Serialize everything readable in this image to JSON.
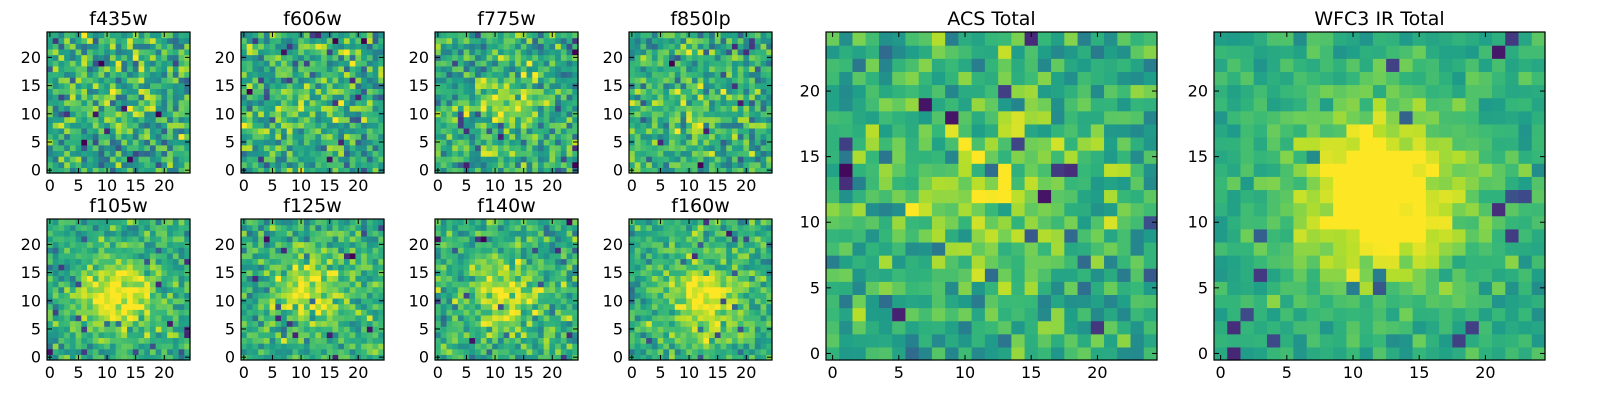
{
  "figure": {
    "colormap": "viridis",
    "colormap_stops": [
      "#440154",
      "#482878",
      "#3e4989",
      "#31688e",
      "#26828e",
      "#1f9e89",
      "#35b779",
      "#6ece58",
      "#b5de2b",
      "#fde725"
    ]
  },
  "chart_data": [
    {
      "type": "heatmap",
      "title": "f435w",
      "grid": [
        25,
        25
      ],
      "xlim": [
        -0.5,
        24.5
      ],
      "ylim": [
        -0.5,
        24.5
      ],
      "xticks": [
        0,
        5,
        10,
        15,
        20
      ],
      "yticks": [
        0,
        5,
        10,
        15,
        20
      ],
      "colormap": "viridis",
      "center": [
        12,
        12
      ],
      "blob_strength": 0.05,
      "noise": 0.42,
      "seed": 11
    },
    {
      "type": "heatmap",
      "title": "f606w",
      "grid": [
        25,
        25
      ],
      "xlim": [
        -0.5,
        24.5
      ],
      "ylim": [
        -0.5,
        24.5
      ],
      "xticks": [
        0,
        5,
        10,
        15,
        20
      ],
      "yticks": [
        0,
        5,
        10,
        15,
        20
      ],
      "colormap": "viridis",
      "center": [
        12,
        12
      ],
      "blob_strength": 0.12,
      "noise": 0.4,
      "seed": 23
    },
    {
      "type": "heatmap",
      "title": "f775w",
      "grid": [
        25,
        25
      ],
      "xlim": [
        -0.5,
        24.5
      ],
      "ylim": [
        -0.5,
        24.5
      ],
      "xticks": [
        0,
        5,
        10,
        15,
        20
      ],
      "yticks": [
        0,
        5,
        10,
        15,
        20
      ],
      "colormap": "viridis",
      "center": [
        12,
        12
      ],
      "blob_strength": 0.18,
      "noise": 0.4,
      "seed": 37
    },
    {
      "type": "heatmap",
      "title": "f850lp",
      "grid": [
        25,
        25
      ],
      "xlim": [
        -0.5,
        24.5
      ],
      "ylim": [
        -0.5,
        24.5
      ],
      "xticks": [
        0,
        5,
        10,
        15,
        20
      ],
      "yticks": [
        0,
        5,
        10,
        15,
        20
      ],
      "colormap": "viridis",
      "center": [
        12,
        12
      ],
      "blob_strength": 0.12,
      "noise": 0.4,
      "seed": 41
    },
    {
      "type": "heatmap",
      "title": "f105w",
      "grid": [
        25,
        25
      ],
      "xlim": [
        -0.5,
        24.5
      ],
      "ylim": [
        -0.5,
        24.5
      ],
      "xticks": [
        0,
        5,
        10,
        15,
        20
      ],
      "yticks": [
        0,
        5,
        10,
        15,
        20
      ],
      "colormap": "viridis",
      "center": [
        12,
        11
      ],
      "blob_strength": 0.4,
      "noise": 0.28,
      "seed": 53
    },
    {
      "type": "heatmap",
      "title": "f125w",
      "grid": [
        25,
        25
      ],
      "xlim": [
        -0.5,
        24.5
      ],
      "ylim": [
        -0.5,
        24.5
      ],
      "xticks": [
        0,
        5,
        10,
        15,
        20
      ],
      "yticks": [
        0,
        5,
        10,
        15,
        20
      ],
      "colormap": "viridis",
      "center": [
        12,
        12
      ],
      "blob_strength": 0.3,
      "noise": 0.32,
      "seed": 67
    },
    {
      "type": "heatmap",
      "title": "f140w",
      "grid": [
        25,
        25
      ],
      "xlim": [
        -0.5,
        24.5
      ],
      "ylim": [
        -0.5,
        24.5
      ],
      "xticks": [
        0,
        5,
        10,
        15,
        20
      ],
      "yticks": [
        0,
        5,
        10,
        15,
        20
      ],
      "colormap": "viridis",
      "center": [
        12,
        11
      ],
      "blob_strength": 0.32,
      "noise": 0.32,
      "seed": 71
    },
    {
      "type": "heatmap",
      "title": "f160w",
      "grid": [
        25,
        25
      ],
      "xlim": [
        -0.5,
        24.5
      ],
      "ylim": [
        -0.5,
        24.5
      ],
      "xticks": [
        0,
        5,
        10,
        15,
        20
      ],
      "yticks": [
        0,
        5,
        10,
        15,
        20
      ],
      "colormap": "viridis",
      "center": [
        13,
        10
      ],
      "blob_strength": 0.38,
      "noise": 0.3,
      "seed": 83
    },
    {
      "type": "heatmap",
      "title": "ACS Total",
      "grid": [
        25,
        25
      ],
      "xlim": [
        -0.5,
        24.5
      ],
      "ylim": [
        -0.5,
        24.5
      ],
      "xticks": [
        0,
        5,
        10,
        15,
        20
      ],
      "yticks": [
        0,
        5,
        10,
        15,
        20
      ],
      "colormap": "viridis",
      "center": [
        12,
        12
      ],
      "blob_strength": 0.28,
      "noise": 0.32,
      "seed": 97
    },
    {
      "type": "heatmap",
      "title": "WFC3 IR Total",
      "grid": [
        25,
        25
      ],
      "xlim": [
        -0.5,
        24.5
      ],
      "ylim": [
        -0.5,
        24.5
      ],
      "xticks": [
        0,
        5,
        10,
        15,
        20
      ],
      "yticks": [
        0,
        5,
        10,
        15,
        20
      ],
      "colormap": "viridis",
      "center": [
        12,
        12
      ],
      "blob_strength": 0.55,
      "noise": 0.18,
      "seed": 103
    }
  ]
}
